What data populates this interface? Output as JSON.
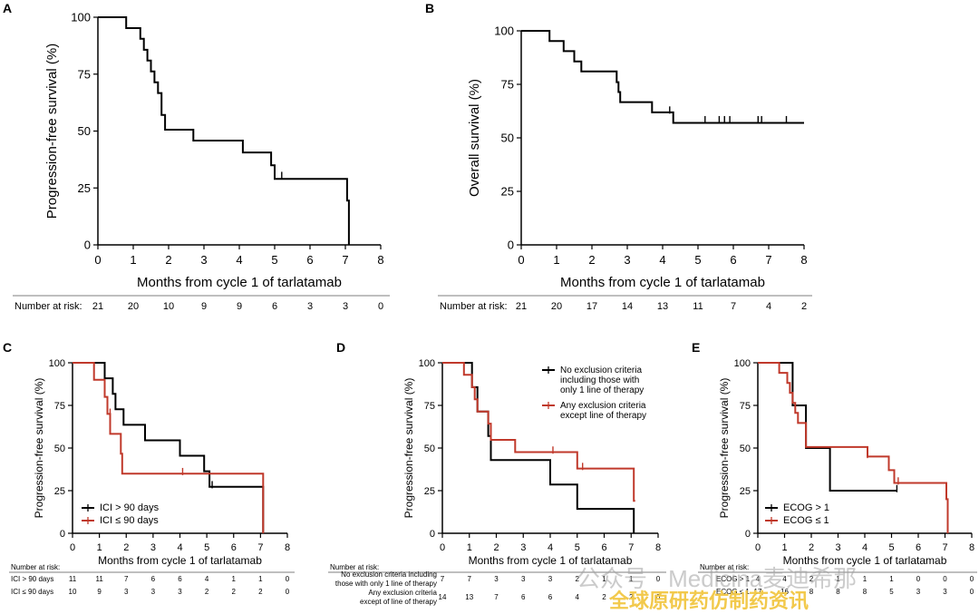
{
  "chart_data": [
    {
      "panel": "A",
      "type": "line",
      "subtype": "kaplan-meier",
      "xlabel": "Months from cycle 1 of tarlatamab",
      "ylabel": "Progression-free survival (%)",
      "xlim": [
        0,
        8
      ],
      "ylim": [
        0,
        100
      ],
      "xticks": [
        0,
        1,
        2,
        3,
        4,
        5,
        6,
        7,
        8
      ],
      "yticks": [
        0,
        25,
        50,
        75,
        100
      ],
      "series": [
        {
          "color": "#000000",
          "steps": [
            [
              0,
              100
            ],
            [
              0.8,
              100
            ],
            [
              0.8,
              95.2
            ],
            [
              1.2,
              95.2
            ],
            [
              1.2,
              90.5
            ],
            [
              1.3,
              90.5
            ],
            [
              1.3,
              85.7
            ],
            [
              1.4,
              85.7
            ],
            [
              1.4,
              81
            ],
            [
              1.5,
              81
            ],
            [
              1.5,
              76.2
            ],
            [
              1.6,
              76.2
            ],
            [
              1.6,
              71.4
            ],
            [
              1.7,
              71.4
            ],
            [
              1.7,
              66.7
            ],
            [
              1.8,
              66.7
            ],
            [
              1.8,
              57.1
            ],
            [
              1.9,
              57.1
            ],
            [
              1.9,
              50.6
            ],
            [
              2.7,
              50.6
            ],
            [
              2.7,
              45.8
            ],
            [
              4.1,
              45.8
            ],
            [
              4.1,
              40.6
            ],
            [
              4.9,
              40.6
            ],
            [
              4.9,
              35
            ],
            [
              5,
              35
            ],
            [
              5,
              29
            ],
            [
              7.05,
              29
            ],
            [
              7.05,
              19.5
            ],
            [
              7.1,
              19.5
            ],
            [
              7.1,
              0
            ]
          ],
          "censor": [
            [
              4.1,
              42.5
            ],
            [
              5.2,
              30.5
            ]
          ]
        }
      ],
      "risk_table": {
        "label": "Number at risk:",
        "rows": [
          {
            "name": "",
            "values": [
              "21",
              "20",
              "10",
              "9",
              "9",
              "6",
              "3",
              "3",
              "0"
            ]
          }
        ]
      }
    },
    {
      "panel": "B",
      "type": "line",
      "subtype": "kaplan-meier",
      "xlabel": "Months from cycle 1 of tarlatamab",
      "ylabel": "Overall survival (%)",
      "xlim": [
        0,
        8
      ],
      "ylim": [
        0,
        100
      ],
      "xticks": [
        0,
        1,
        2,
        3,
        4,
        5,
        6,
        7,
        8
      ],
      "yticks": [
        0,
        25,
        50,
        75,
        100
      ],
      "series": [
        {
          "color": "#000000",
          "steps": [
            [
              0,
              100
            ],
            [
              0.8,
              100
            ],
            [
              0.8,
              95.2
            ],
            [
              1.2,
              95.2
            ],
            [
              1.2,
              90.5
            ],
            [
              1.5,
              90.5
            ],
            [
              1.5,
              85.7
            ],
            [
              1.7,
              85.7
            ],
            [
              1.7,
              81
            ],
            [
              2.7,
              81
            ],
            [
              2.7,
              76
            ],
            [
              2.75,
              76
            ],
            [
              2.75,
              71.4
            ],
            [
              2.8,
              71.4
            ],
            [
              2.8,
              66.7
            ],
            [
              3.7,
              66.7
            ],
            [
              3.7,
              61.9
            ],
            [
              4.3,
              61.9
            ],
            [
              4.3,
              57
            ],
            [
              8,
              57
            ]
          ],
          "censor": [
            [
              4.2,
              63
            ],
            [
              5.2,
              58.5
            ],
            [
              5.6,
              58.5
            ],
            [
              5.75,
              58.5
            ],
            [
              5.9,
              58.5
            ],
            [
              6.7,
              58.5
            ],
            [
              6.8,
              58.5
            ],
            [
              7.5,
              58.5
            ]
          ]
        }
      ],
      "risk_table": {
        "label": "Number at risk:",
        "rows": [
          {
            "name": "",
            "values": [
              "21",
              "20",
              "17",
              "14",
              "13",
              "11",
              "7",
              "4",
              "2"
            ]
          }
        ]
      }
    },
    {
      "panel": "C",
      "type": "line",
      "subtype": "kaplan-meier",
      "xlabel": "Months from cycle 1 of tarlatamab",
      "ylabel": "Progression-free survival (%)",
      "xlim": [
        0,
        8
      ],
      "ylim": [
        0,
        100
      ],
      "xticks": [
        0,
        1,
        2,
        3,
        4,
        5,
        6,
        7,
        8
      ],
      "yticks": [
        0,
        25,
        50,
        75,
        100
      ],
      "legend_position": "bottom-left",
      "series": [
        {
          "name": "ICI > 90 days",
          "color": "#000000",
          "steps": [
            [
              0,
              100
            ],
            [
              1.2,
              100
            ],
            [
              1.2,
              90.9
            ],
            [
              1.5,
              90.9
            ],
            [
              1.5,
              81.8
            ],
            [
              1.6,
              81.8
            ],
            [
              1.6,
              72.7
            ],
            [
              1.9,
              72.7
            ],
            [
              1.9,
              63.6
            ],
            [
              2.7,
              63.6
            ],
            [
              2.7,
              54.5
            ],
            [
              4,
              54.5
            ],
            [
              4,
              45.5
            ],
            [
              4.9,
              45.5
            ],
            [
              4.9,
              36.4
            ],
            [
              5.1,
              36.4
            ],
            [
              5.1,
              27.3
            ],
            [
              7.1,
              27.3
            ],
            [
              7.1,
              0
            ]
          ],
          "censor": [
            [
              5.2,
              28.5
            ]
          ]
        },
        {
          "name": "ICI ≤ 90 days",
          "color": "#c0392b",
          "steps": [
            [
              0,
              100
            ],
            [
              0.8,
              100
            ],
            [
              0.8,
              90
            ],
            [
              1.2,
              90
            ],
            [
              1.2,
              80
            ],
            [
              1.3,
              80
            ],
            [
              1.3,
              70
            ],
            [
              1.4,
              70
            ],
            [
              1.4,
              58.3
            ],
            [
              1.8,
              58.3
            ],
            [
              1.8,
              46.7
            ],
            [
              1.85,
              46.7
            ],
            [
              1.85,
              35
            ],
            [
              7.1,
              35
            ],
            [
              7.1,
              0
            ]
          ],
          "censor": [
            [
              1.4,
              71
            ],
            [
              4.1,
              36.2
            ]
          ]
        }
      ],
      "risk_table": {
        "label": "Number at risk:",
        "rows": [
          {
            "name": "ICI > 90 days",
            "values": [
              "11",
              "11",
              "7",
              "6",
              "6",
              "4",
              "1",
              "1",
              "0"
            ]
          },
          {
            "name": "ICI ≤ 90 days",
            "values": [
              "10",
              "9",
              "3",
              "3",
              "3",
              "2",
              "2",
              "2",
              "0"
            ]
          }
        ]
      }
    },
    {
      "panel": "D",
      "type": "line",
      "subtype": "kaplan-meier",
      "xlabel": "Months from cycle 1 of tarlatamab",
      "ylabel": "Progression-free survival (%)",
      "xlim": [
        0,
        8
      ],
      "ylim": [
        0,
        100
      ],
      "xticks": [
        0,
        1,
        2,
        3,
        4,
        5,
        6,
        7,
        8
      ],
      "yticks": [
        0,
        25,
        50,
        75,
        100
      ],
      "legend_position": "top-right",
      "series": [
        {
          "name": "No exclusion criteria including those with only 1 line of therapy",
          "legend_lines": [
            "No exclusion criteria",
            "including those with",
            "only 1 line of therapy"
          ],
          "color": "#000000",
          "steps": [
            [
              0,
              100
            ],
            [
              1.1,
              100
            ],
            [
              1.1,
              85.7
            ],
            [
              1.3,
              85.7
            ],
            [
              1.3,
              71.4
            ],
            [
              1.7,
              71.4
            ],
            [
              1.7,
              57.1
            ],
            [
              1.8,
              57.1
            ],
            [
              1.8,
              42.9
            ],
            [
              4,
              42.9
            ],
            [
              4,
              28.6
            ],
            [
              5,
              28.6
            ],
            [
              5,
              14.3
            ],
            [
              7.1,
              14.3
            ],
            [
              7.1,
              0
            ]
          ],
          "censor": []
        },
        {
          "name": "Any exclusion criteria except line of therapy",
          "legend_lines": [
            "Any exclusion criteria",
            "except line of therapy"
          ],
          "color": "#c0392b",
          "steps": [
            [
              0,
              100
            ],
            [
              0.8,
              100
            ],
            [
              0.8,
              92.9
            ],
            [
              1.1,
              92.9
            ],
            [
              1.1,
              85.7
            ],
            [
              1.2,
              85.7
            ],
            [
              1.2,
              78.6
            ],
            [
              1.3,
              78.6
            ],
            [
              1.3,
              71.4
            ],
            [
              1.7,
              71.4
            ],
            [
              1.7,
              64.3
            ],
            [
              1.8,
              64.3
            ],
            [
              1.8,
              54.8
            ],
            [
              2.7,
              54.8
            ],
            [
              2.7,
              47.6
            ],
            [
              5,
              47.6
            ],
            [
              5,
              38
            ],
            [
              7.1,
              38
            ],
            [
              7.1,
              19
            ],
            [
              7.15,
              19
            ]
          ],
          "censor": [
            [
              4.1,
              48.8
            ],
            [
              5.2,
              39.2
            ]
          ]
        }
      ],
      "risk_table": {
        "label": "Number at risk:",
        "rows": [
          {
            "name": "No exclusion criteria including those with only 1 line of therapy",
            "name_lines": [
              "No exclusion criteria including",
              "those with only 1 line of therapy"
            ],
            "values": [
              "7",
              "7",
              "3",
              "3",
              "3",
              "2",
              "1",
              "1",
              "0"
            ]
          },
          {
            "name": "Any exclusion criteria except of line of therapy",
            "name_lines": [
              "Any exclusion criteria",
              "except of line of therapy"
            ],
            "values": [
              "14",
              "13",
              "7",
              "6",
              "6",
              "4",
              "2",
              "2",
              "0"
            ]
          }
        ]
      }
    },
    {
      "panel": "E",
      "type": "line",
      "subtype": "kaplan-meier",
      "xlabel": "Months from cycle 1 of tarlatamab",
      "ylabel": "Progression-free survival (%)",
      "xlim": [
        0,
        8
      ],
      "ylim": [
        0,
        100
      ],
      "xticks": [
        0,
        1,
        2,
        3,
        4,
        5,
        6,
        7,
        8
      ],
      "yticks": [
        0,
        25,
        50,
        75,
        100
      ],
      "legend_position": "bottom-left",
      "series": [
        {
          "name": "ECOG > 1",
          "color": "#000000",
          "steps": [
            [
              0,
              100
            ],
            [
              1.3,
              100
            ],
            [
              1.3,
              75
            ],
            [
              1.8,
              75
            ],
            [
              1.8,
              50
            ],
            [
              2.7,
              50
            ],
            [
              2.7,
              25
            ],
            [
              5.2,
              25
            ],
            [
              5.2,
              25
            ]
          ],
          "censor": [
            [
              5.2,
              26.2
            ]
          ]
        },
        {
          "name": "ECOG ≤ 1",
          "color": "#c0392b",
          "steps": [
            [
              0,
              100
            ],
            [
              0.8,
              100
            ],
            [
              0.8,
              94.1
            ],
            [
              1.1,
              94.1
            ],
            [
              1.1,
              88.2
            ],
            [
              1.2,
              88.2
            ],
            [
              1.2,
              82.4
            ],
            [
              1.3,
              82.4
            ],
            [
              1.3,
              76.5
            ],
            [
              1.4,
              76.5
            ],
            [
              1.4,
              70.6
            ],
            [
              1.5,
              70.6
            ],
            [
              1.5,
              64.7
            ],
            [
              1.8,
              64.7
            ],
            [
              1.8,
              50.6
            ],
            [
              4.1,
              50.6
            ],
            [
              4.1,
              45
            ],
            [
              4.9,
              45
            ],
            [
              4.9,
              37
            ],
            [
              5.1,
              37
            ],
            [
              5.1,
              29.5
            ],
            [
              7.05,
              29.5
            ],
            [
              7.05,
              20
            ],
            [
              7.1,
              20
            ],
            [
              7.1,
              0
            ]
          ],
          "censor": [
            [
              4.1,
              46.2
            ],
            [
              5.25,
              30.7
            ]
          ]
        }
      ],
      "risk_table": {
        "label": "Number at risk:",
        "rows": [
          {
            "name": "ECOG > 1",
            "values": [
              "4",
              "4",
              "2",
              "1",
              "1",
              "1",
              "0",
              "0",
              "0"
            ]
          },
          {
            "name": "ECOG ≤ 1",
            "values": [
              "17",
              "16",
              "8",
              "8",
              "8",
              "5",
              "3",
              "3",
              "0"
            ]
          }
        ]
      }
    }
  ],
  "watermark": {
    "line1": "公众号 · Medicina麦迪希那",
    "line2": "全球原研药仿制药资讯"
  }
}
